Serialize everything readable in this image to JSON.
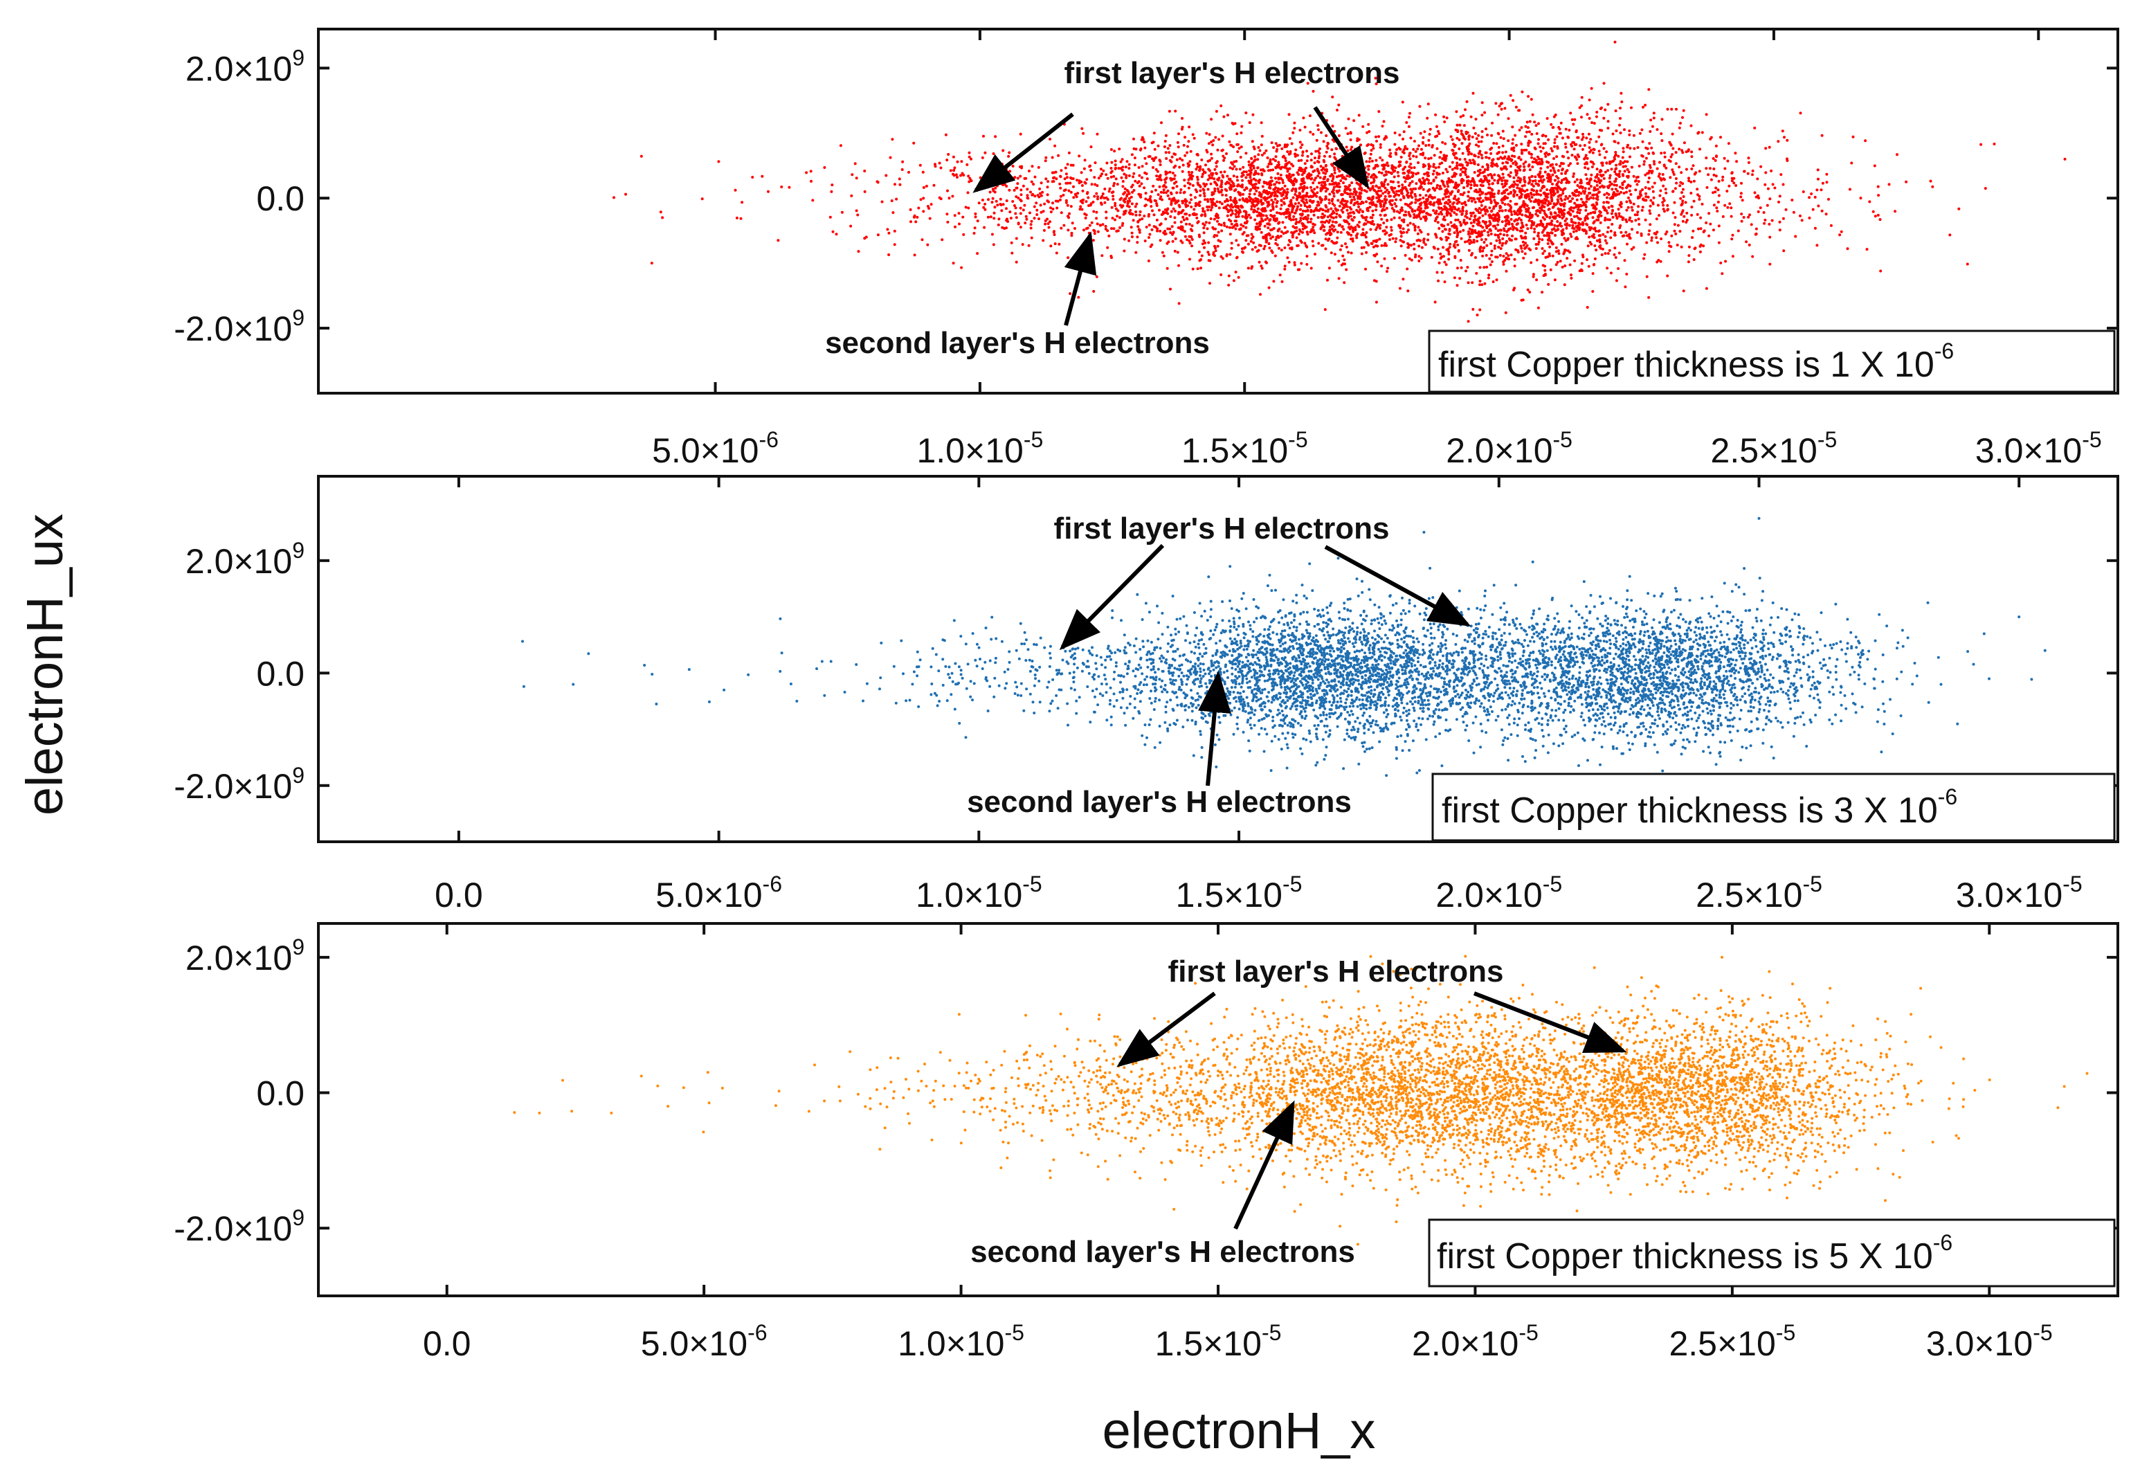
{
  "figure": {
    "ylabel": "electronH_ux",
    "xlabel": "electronH_x"
  },
  "chart_data": [
    {
      "type": "scatter",
      "name": "panel-top",
      "color": "#ff0000",
      "ylim": [
        -3000000000.0,
        2600000000.0
      ],
      "xlim": [
        -2.5e-06,
        3.15e-05
      ],
      "yticks": [
        -2000000000.0,
        0.0,
        2000000000.0
      ],
      "ytick_labels": [
        {
          "m": "-2.0×10",
          "e": "9"
        },
        {
          "m": "0.0",
          "e": ""
        },
        {
          "m": "2.0×10",
          "e": "9"
        }
      ],
      "xticks": [
        5e-06,
        1e-05,
        1.5e-05,
        2e-05,
        2.5e-05,
        3e-05
      ],
      "xtick_labels": [
        {
          "m": "5.0×10",
          "e": "-6"
        },
        {
          "m": "1.0×10",
          "e": "-5"
        },
        {
          "m": "1.5×10",
          "e": "-5"
        },
        {
          "m": "2.0×10",
          "e": "-5"
        },
        {
          "m": "2.5×10",
          "e": "-5"
        },
        {
          "m": "3.0×10",
          "e": "-5"
        }
      ],
      "clusters": [
        {
          "cx": 1.85e-05,
          "cy": 50000000.0,
          "sx": 3.4e-06,
          "sy": 550000000.0,
          "n": 2600
        },
        {
          "cx": 2.05e-05,
          "cy": 0.0,
          "sx": 1.5e-06,
          "sy": 600000000.0,
          "n": 1300
        },
        {
          "cx": 1.55e-05,
          "cy": 0.0,
          "sx": 1.2e-06,
          "sy": 500000000.0,
          "n": 800
        },
        {
          "cx": 1.25e-05,
          "cy": 0.0,
          "sx": 2.6e-06,
          "sy": 400000000.0,
          "n": 700
        },
        {
          "cx": 1.6e-05,
          "cy": 0.0,
          "sx": 7e-06,
          "sy": 300000000.0,
          "n": 120
        }
      ],
      "sparse_points": [
        {
          "x": 4e-06,
          "y": -300000000.0
        },
        {
          "x": 3.8e-06,
          "y": -1000000000.0
        },
        {
          "x": 6e-06,
          "y": 100000000.0
        },
        {
          "x": 9.5e-06,
          "y": -1000000000.0
        },
        {
          "x": 2.9e-05,
          "y": 150000000.0
        },
        {
          "x": 3.05e-05,
          "y": 600000000.0
        },
        {
          "x": 2.75e-05,
          "y": 250000000.0
        },
        {
          "x": 2.2e-05,
          "y": 2400000000.0
        }
      ],
      "annotations": {
        "first_label": "first layer's H electrons",
        "second_label": "second layer's H electrons"
      },
      "legend": "first Copper thickness is 1 X 10",
      "legend_exp": "-6"
    },
    {
      "type": "scatter",
      "name": "panel-middle",
      "color": "#1f6fb2",
      "ylim": [
        -3000000000.0,
        3500000000.0
      ],
      "xlim": [
        -2.7e-06,
        3.19e-05
      ],
      "yticks": [
        -2000000000.0,
        0.0,
        2000000000.0
      ],
      "ytick_labels": [
        {
          "m": "-2.0×10",
          "e": "9"
        },
        {
          "m": "0.0",
          "e": ""
        },
        {
          "m": "2.0×10",
          "e": "9"
        }
      ],
      "xticks": [
        0.0,
        5e-06,
        1e-05,
        1.5e-05,
        2e-05,
        2.5e-05,
        3e-05
      ],
      "xtick_labels": [
        {
          "m": "0.0",
          "e": ""
        },
        {
          "m": "5.0×10",
          "e": "-6"
        },
        {
          "m": "1.0×10",
          "e": "-5"
        },
        {
          "m": "1.5×10",
          "e": "-5"
        },
        {
          "m": "2.0×10",
          "e": "-5"
        },
        {
          "m": "2.5×10",
          "e": "-5"
        },
        {
          "m": "3.0×10",
          "e": "-5"
        }
      ],
      "clusters": [
        {
          "cx": 1.65e-05,
          "cy": 0.0,
          "sx": 1.6e-06,
          "sy": 600000000.0,
          "n": 2100
        },
        {
          "cx": 2.3e-05,
          "cy": 0.0,
          "sx": 1.8e-06,
          "sy": 600000000.0,
          "n": 2300
        },
        {
          "cx": 1.95e-05,
          "cy": 0.0,
          "sx": 1.8e-06,
          "sy": 550000000.0,
          "n": 700
        },
        {
          "cx": 1.3e-05,
          "cy": 0.0,
          "sx": 2.2e-06,
          "sy": 400000000.0,
          "n": 500
        },
        {
          "cx": 1.5e-05,
          "cy": 0.0,
          "sx": 7.5e-06,
          "sy": 250000000.0,
          "n": 110
        }
      ],
      "sparse_points": [
        {
          "x": 2.2e-06,
          "y": -200000000.0
        },
        {
          "x": 3.8e-06,
          "y": -550000000.0
        },
        {
          "x": 5.1e-06,
          "y": -300000000.0
        },
        {
          "x": 6.5e-06,
          "y": -500000000.0
        },
        {
          "x": 3e-05,
          "y": 1000000000.0
        },
        {
          "x": 3.05e-05,
          "y": 400000000.0
        },
        {
          "x": 2.5e-05,
          "y": 2750000000.0
        },
        {
          "x": 2.85e-05,
          "y": -200000000.0
        }
      ],
      "annotations": {
        "first_label": "first layer's H electrons",
        "second_label": "second layer's H electrons"
      },
      "legend": "first Copper thickness is 3 X 10",
      "legend_exp": "-6"
    },
    {
      "type": "scatter",
      "name": "panel-bottom",
      "color": "#ff8c0a",
      "ylim": [
        -3000000000.0,
        2500000000.0
      ],
      "xlim": [
        -2.5e-06,
        3.25e-05
      ],
      "yticks": [
        -2000000000.0,
        0.0,
        2000000000.0
      ],
      "ytick_labels": [
        {
          "m": "-2.0×10",
          "e": "9"
        },
        {
          "m": "0.0",
          "e": ""
        },
        {
          "m": "2.0×10",
          "e": "9"
        }
      ],
      "xticks": [
        0.0,
        5e-06,
        1e-05,
        1.5e-05,
        2e-05,
        2.5e-05,
        3e-05
      ],
      "xtick_labels": [
        {
          "m": "0.0",
          "e": ""
        },
        {
          "m": "5.0×10",
          "e": "-6"
        },
        {
          "m": "1.0×10",
          "e": "-5"
        },
        {
          "m": "1.5×10",
          "e": "-5"
        },
        {
          "m": "2.0×10",
          "e": "-5"
        },
        {
          "m": "2.5×10",
          "e": "-5"
        },
        {
          "m": "3.0×10",
          "e": "-5"
        }
      ],
      "clusters": [
        {
          "cx": 1.85e-05,
          "cy": 0.0,
          "sx": 2e-06,
          "sy": 600000000.0,
          "n": 2200
        },
        {
          "cx": 2.45e-05,
          "cy": 0.0,
          "sx": 1.6e-06,
          "sy": 600000000.0,
          "n": 2000
        },
        {
          "cx": 2.15e-05,
          "cy": 0.0,
          "sx": 1.5e-06,
          "sy": 600000000.0,
          "n": 700
        },
        {
          "cx": 1.4e-05,
          "cy": 0.0,
          "sx": 2.3e-06,
          "sy": 450000000.0,
          "n": 600
        },
        {
          "cx": 1.6e-05,
          "cy": 0.0,
          "sx": 7.5e-06,
          "sy": 250000000.0,
          "n": 110
        }
      ],
      "sparse_points": [
        {
          "x": 1.8e-06,
          "y": -300000000.0
        },
        {
          "x": 3.2e-06,
          "y": -300000000.0
        },
        {
          "x": 4.1e-06,
          "y": 100000000.0
        },
        {
          "x": 4.3e-06,
          "y": -200000000.0
        },
        {
          "x": 5.1e-06,
          "y": -150000000.0
        },
        {
          "x": 2.95e-05,
          "y": 500000000.0
        },
        {
          "x": 2.95e-05,
          "y": -100000000.0
        },
        {
          "x": 2.48e-05,
          "y": 2000000000.0
        }
      ],
      "annotations": {
        "first_label": "first layer's H electrons",
        "second_label": "second layer's H electrons"
      },
      "legend": "first Copper thickness is 5 X 10",
      "legend_exp": "-6"
    }
  ]
}
